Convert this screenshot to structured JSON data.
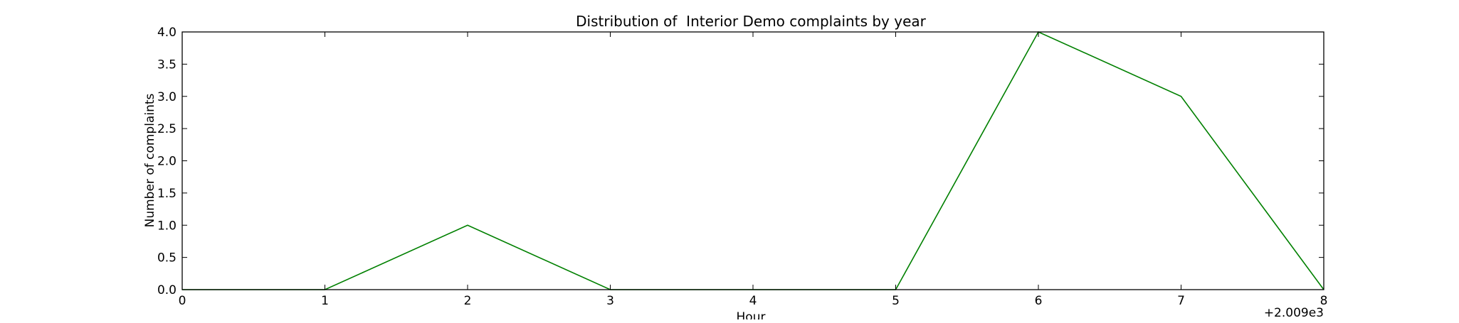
{
  "chart_data": {
    "type": "line",
    "title": "Distribution of  Interior Demo complaints by year",
    "xlabel": "Hour",
    "ylabel": "Number of complaints",
    "x_offset_label": "+2.009e3",
    "xlim": [
      0,
      8
    ],
    "ylim": [
      0,
      4
    ],
    "x_ticks": [
      0,
      1,
      2,
      3,
      4,
      5,
      6,
      7,
      8
    ],
    "y_ticks": [
      0,
      0.5,
      1,
      1.5,
      2,
      2.5,
      3,
      3.5,
      4
    ],
    "x_tick_labels": [
      "0",
      "1",
      "2",
      "3",
      "4",
      "5",
      "6",
      "7",
      "8"
    ],
    "y_tick_labels": [
      "0.0",
      "0.5",
      "1.0",
      "1.5",
      "2.0",
      "2.5",
      "3.0",
      "3.5",
      "4.0"
    ],
    "grid": false,
    "legend": "none",
    "series": [
      {
        "color": "#008000",
        "x": [
          0,
          1,
          2,
          3,
          4,
          5,
          6,
          7,
          8
        ],
        "values": [
          0,
          0,
          1,
          0,
          0,
          0,
          4,
          3,
          0
        ]
      }
    ]
  }
}
